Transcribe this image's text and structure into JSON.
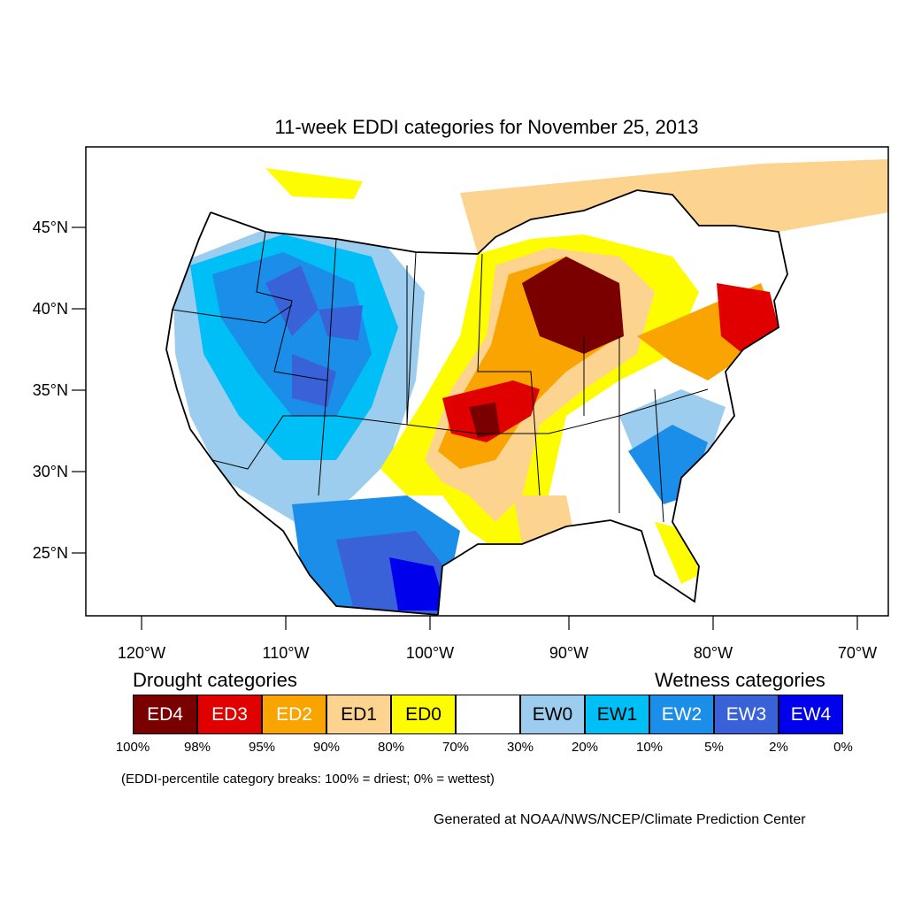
{
  "title": "11-week EDDI categories for November 25, 2013",
  "colors": {
    "ED4": "#7a0000",
    "ED3": "#e00000",
    "ED2": "#f9a400",
    "ED1": "#fcd48f",
    "ED0": "#fdfd00",
    "neutral": "#ffffff",
    "EW0": "#9dcdee",
    "EW1": "#00bef6",
    "EW2": "#1a8ee8",
    "EW3": "#3a62d8",
    "EW4": "#0000ec"
  },
  "axes": {
    "lat_labels": [
      "45°N",
      "40°N",
      "35°N",
      "30°N",
      "25°N"
    ],
    "lon_labels": [
      "120°W",
      "110°W",
      "100°W",
      "90°W",
      "80°W",
      "70°W"
    ]
  },
  "legend": {
    "drought_heading": "Drought categories",
    "wetness_heading": "Wetness categories",
    "categories": [
      {
        "label": "ED4",
        "color": "#7a0000",
        "text_color": "#ffffff"
      },
      {
        "label": "ED3",
        "color": "#e00000",
        "text_color": "#ffffff"
      },
      {
        "label": "ED2",
        "color": "#f9a400",
        "text_color": "#ffffff"
      },
      {
        "label": "ED1",
        "color": "#fcd48f",
        "text_color": "#000000"
      },
      {
        "label": "ED0",
        "color": "#fdfd00",
        "text_color": "#000000"
      },
      {
        "label": "",
        "color": "#ffffff",
        "text_color": "#000000"
      },
      {
        "label": "EW0",
        "color": "#9dcdee",
        "text_color": "#000000"
      },
      {
        "label": "EW1",
        "color": "#00bef6",
        "text_color": "#000000"
      },
      {
        "label": "EW2",
        "color": "#1a8ee8",
        "text_color": "#ffffff"
      },
      {
        "label": "EW3",
        "color": "#3a62d8",
        "text_color": "#ffffff"
      },
      {
        "label": "EW4",
        "color": "#0000ec",
        "text_color": "#ffffff"
      }
    ],
    "breaks": [
      "100%",
      "98%",
      "95%",
      "90%",
      "80%",
      "70%",
      "30%",
      "20%",
      "10%",
      "5%",
      "2%",
      "0%"
    ],
    "note": "(EDDI-percentile category breaks: 100% = driest; 0% = wettest)"
  },
  "credit": "Generated at NOAA/NWS/NCEP/Climate Prediction Center"
}
